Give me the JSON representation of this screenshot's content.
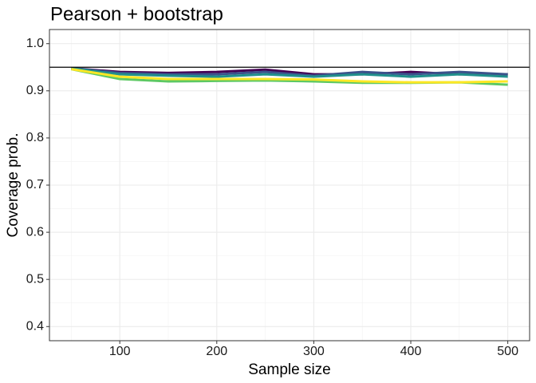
{
  "chart_data": {
    "type": "line",
    "title": "Pearson + bootstrap",
    "x_label": "Sample size",
    "y_label": "Coverage prob.",
    "x": [
      50,
      100,
      150,
      200,
      250,
      300,
      350,
      400,
      450,
      500
    ],
    "series": [
      {
        "color": "#440154",
        "values": [
          0.948,
          0.94,
          0.938,
          0.94,
          0.945,
          0.935,
          0.935,
          0.94,
          0.935,
          0.935
        ]
      },
      {
        "color": "#3b528b",
        "values": [
          0.948,
          0.938,
          0.935,
          0.935,
          0.94,
          0.932,
          0.94,
          0.935,
          0.94,
          0.935
        ]
      },
      {
        "color": "#21908c",
        "values": [
          0.948,
          0.935,
          0.932,
          0.93,
          0.935,
          0.93,
          0.935,
          0.93,
          0.935,
          0.93
        ]
      },
      {
        "color": "#5dc863",
        "values": [
          0.946,
          0.925,
          0.92,
          0.921,
          0.922,
          0.92,
          0.917,
          0.917,
          0.918,
          0.913
        ]
      },
      {
        "color": "#fde725",
        "values": [
          0.946,
          0.93,
          0.925,
          0.925,
          0.925,
          0.924,
          0.92,
          0.918,
          0.918,
          0.92
        ]
      }
    ],
    "hline": 0.95,
    "xlim": [
      27.5,
      522.5
    ],
    "ylim": [
      0.37,
      1.03
    ],
    "xticks": [
      100,
      200,
      300,
      400,
      500
    ],
    "yticks": [
      0.4,
      0.5,
      0.6,
      0.7,
      0.8,
      0.9,
      {
        "value": 1.0,
        "label": "1.0"
      }
    ],
    "xminor": [
      50,
      150,
      250,
      350,
      450
    ],
    "yminor": [
      0.45,
      0.55,
      0.65,
      0.75,
      0.85,
      0.95
    ],
    "grid": true
  }
}
